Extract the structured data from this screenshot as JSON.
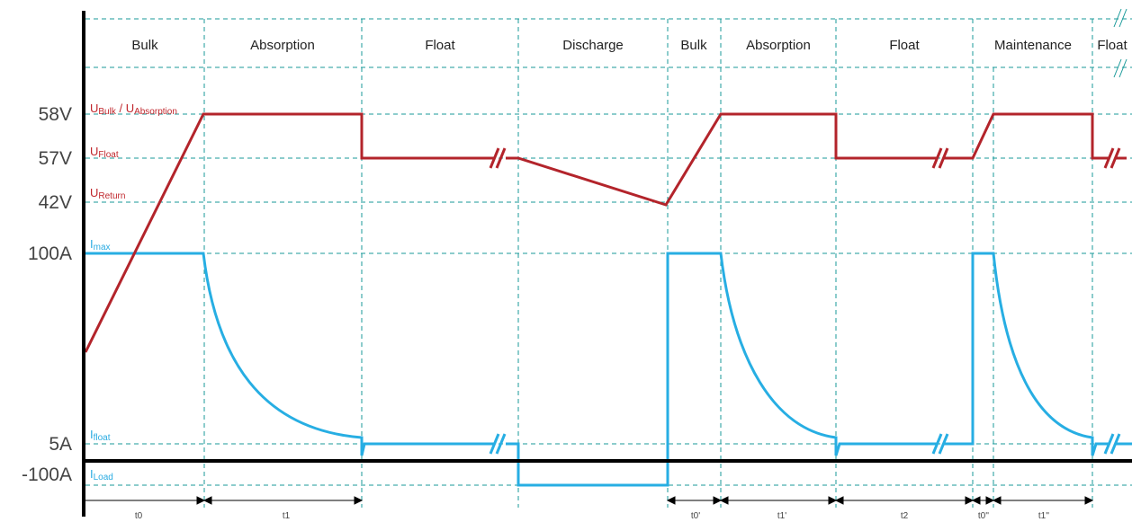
{
  "phases": [
    "Bulk",
    "Absorption",
    "Float",
    "Discharge",
    "Bulk",
    "Absorption",
    "Float",
    "Maintenance",
    "Float"
  ],
  "levels": {
    "v_bulk": "58V",
    "v_float": "57V",
    "v_return": "42V",
    "i_max": "100A",
    "i_float": "5A",
    "i_load": "-100A"
  },
  "signals": {
    "u_bulk": {
      "main": "U",
      "sub": "Bulk"
    },
    "u_sep": " / ",
    "u_absorption": {
      "main": "U",
      "sub": "Absorption"
    },
    "u_float": {
      "main": "U",
      "sub": "Float"
    },
    "u_return": {
      "main": "U",
      "sub": "Return"
    },
    "i_max": {
      "main": "I",
      "sub": "max"
    },
    "i_float": {
      "main": "I",
      "sub": "float"
    },
    "i_load": {
      "main": "I",
      "sub": "Load"
    }
  },
  "time_labels": [
    "t0",
    "t1",
    "t0'",
    "t1'",
    "t2",
    "t0''",
    "t1''"
  ],
  "colors": {
    "voltage": "#b3242b",
    "current": "#27aee3",
    "guides": "#1a9a9a",
    "axis": "#000000"
  }
}
